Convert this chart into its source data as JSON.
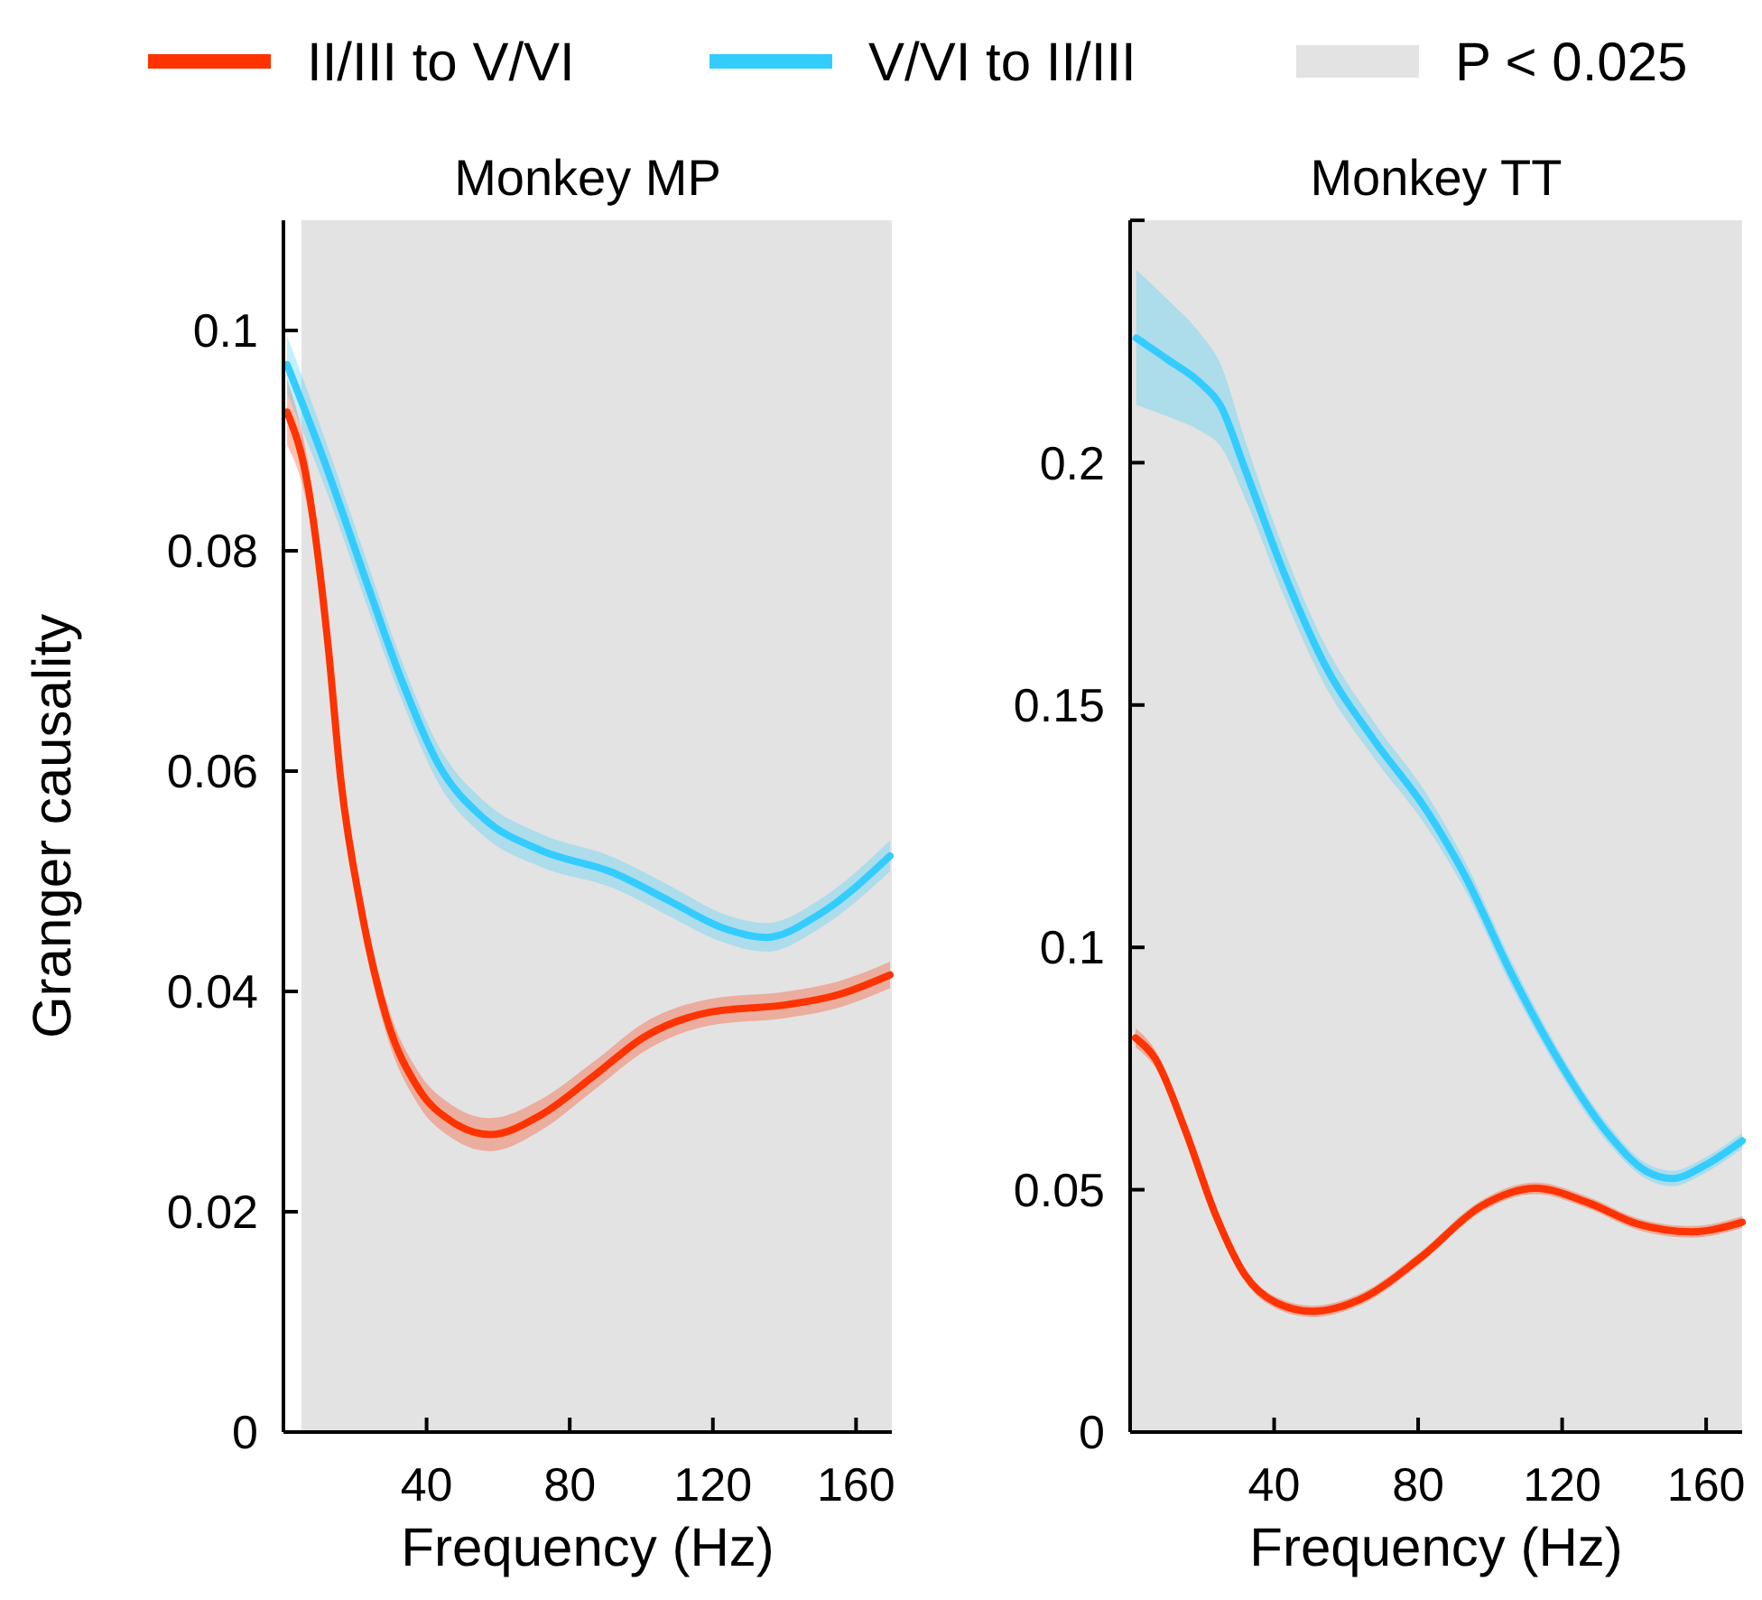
{
  "chart_data": [
    {
      "type": "line",
      "title": "Monkey MP",
      "xlabel": "Frequency (Hz)",
      "ylabel": "Granger causality",
      "xlim": [
        0,
        170
      ],
      "xticks": [
        40,
        80,
        120,
        160
      ],
      "ylim": [
        0,
        0.11
      ],
      "yticks": [
        0,
        0.02,
        0.04,
        0.06,
        0.08,
        0.1
      ],
      "legend": "top",
      "grid": false,
      "bands": [
        {
          "axis": "x",
          "from": 5,
          "to": 170,
          "label": "P < 0.025",
          "color": "#e3e3e3"
        }
      ],
      "series": [
        {
          "name": "II/III to V/VI",
          "color": "#ff3300",
          "x": [
            1,
            7,
            12.6,
            16,
            21.7,
            28.8,
            37.9,
            47,
            57.8,
            72,
            86.6,
            101,
            119,
            140.8,
            155,
            169.5
          ],
          "values": [
            0.0926,
            0.0856,
            0.071,
            0.0593,
            0.0475,
            0.0376,
            0.0311,
            0.0282,
            0.027,
            0.0288,
            0.0323,
            0.0359,
            0.0381,
            0.0388,
            0.0397,
            0.0415
          ],
          "lower": [
            0.0896,
            0.0834,
            0.0692,
            0.0577,
            0.046,
            0.0361,
            0.0296,
            0.0267,
            0.0255,
            0.0274,
            0.031,
            0.0346,
            0.0369,
            0.0376,
            0.0385,
            0.0403
          ],
          "upper": [
            0.0956,
            0.0878,
            0.0728,
            0.0609,
            0.049,
            0.0391,
            0.0326,
            0.0297,
            0.0285,
            0.0302,
            0.0336,
            0.0372,
            0.0393,
            0.04,
            0.0409,
            0.0427
          ]
        },
        {
          "name": "V/VI to II/III",
          "color": "#33ccff",
          "x": [
            1,
            11,
            23.5,
            32.5,
            43.5,
            56,
            72,
            92,
            108,
            122.5,
            135,
            149.7,
            169.5
          ],
          "values": [
            0.0969,
            0.0885,
            0.0769,
            0.0687,
            0.0605,
            0.0557,
            0.0528,
            0.0508,
            0.0482,
            0.0458,
            0.0449,
            0.047,
            0.0523
          ],
          "lower": [
            0.0943,
            0.0863,
            0.0749,
            0.0669,
            0.0588,
            0.0541,
            0.0513,
            0.0494,
            0.0468,
            0.0445,
            0.0436,
            0.0457,
            0.0509
          ],
          "upper": [
            0.0995,
            0.0907,
            0.0789,
            0.0705,
            0.0622,
            0.0573,
            0.0543,
            0.0522,
            0.0496,
            0.0471,
            0.0462,
            0.0483,
            0.0537
          ]
        }
      ]
    },
    {
      "type": "line",
      "title": "Monkey TT",
      "xlabel": "Frequency (Hz)",
      "xlim": [
        0,
        170
      ],
      "xticks": [
        40,
        80,
        120,
        160
      ],
      "ylim": [
        0,
        0.25
      ],
      "yticks": [
        0,
        0.05,
        0.1,
        0.15,
        0.2,
        {
          "value": 0.25,
          "label": null
        }
      ],
      "grid": false,
      "bands": [
        {
          "axis": "x",
          "from": 0,
          "to": 170,
          "color": "#e3e3e3"
        }
      ],
      "series": [
        {
          "color": "#ff3300",
          "x": [
            1.5,
            7,
            15.4,
            23.7,
            32,
            40.5,
            50.6,
            64,
            80.7,
            97.5,
            112.6,
            127.6,
            141,
            156,
            170
          ],
          "values": [
            0.0813,
            0.077,
            0.0621,
            0.0449,
            0.0323,
            0.0267,
            0.0249,
            0.0274,
            0.036,
            0.0466,
            0.0503,
            0.0472,
            0.0429,
            0.0413,
            0.0433
          ],
          "lower": [
            0.0793,
            0.0752,
            0.0605,
            0.0435,
            0.031,
            0.0255,
            0.0237,
            0.0262,
            0.0348,
            0.0454,
            0.0491,
            0.046,
            0.0417,
            0.0401,
            0.0421
          ],
          "upper": [
            0.0833,
            0.0788,
            0.0637,
            0.0463,
            0.0336,
            0.0279,
            0.0261,
            0.0286,
            0.0372,
            0.0478,
            0.0515,
            0.0484,
            0.0441,
            0.0425,
            0.0445
          ]
        },
        {
          "color": "#33ccff",
          "x": [
            1.7,
            10.6,
            19.6,
            25,
            32,
            42.7,
            53.8,
            67.8,
            82.4,
            93,
            105.7,
            118.3,
            132.7,
            143.4,
            150.6,
            159.6,
            170
          ],
          "values": [
            0.2257,
            0.2212,
            0.2164,
            0.2119,
            0.1985,
            0.1773,
            0.1587,
            0.1427,
            0.1282,
            0.1148,
            0.0949,
            0.0776,
            0.0616,
            0.0538,
            0.0523,
            0.055,
            0.0601
          ],
          "lower": [
            0.2119,
            0.2095,
            0.2065,
            0.2035,
            0.1925,
            0.1725,
            0.1545,
            0.139,
            0.1248,
            0.1118,
            0.0923,
            0.0754,
            0.0597,
            0.0522,
            0.0507,
            0.0534,
            0.0585
          ],
          "upper": [
            0.2398,
            0.2335,
            0.2265,
            0.2205,
            0.2045,
            0.1821,
            0.1629,
            0.1464,
            0.1316,
            0.1178,
            0.0975,
            0.0798,
            0.0635,
            0.0554,
            0.0539,
            0.0566,
            0.0617
          ]
        }
      ]
    }
  ]
}
